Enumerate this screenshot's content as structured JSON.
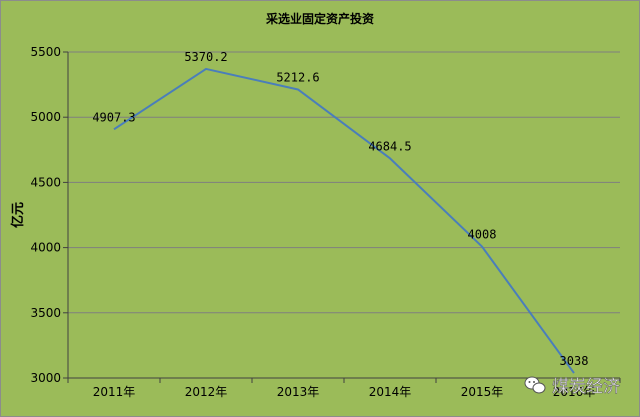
{
  "chart_data": {
    "type": "line",
    "title": "采选业固定资产投资",
    "xlabel": "",
    "ylabel": "亿元",
    "categories": [
      "2011年",
      "2012年",
      "2013年",
      "2014年",
      "2015年",
      "2016年"
    ],
    "series": [
      {
        "values": [
          4907.3,
          5370.2,
          5212.6,
          4684.5,
          4008,
          3038
        ],
        "data_labels": [
          "4907.3",
          "5370.2",
          "5212.6",
          "4684.5",
          "4008",
          "3038"
        ]
      }
    ],
    "yticks": [
      "3000",
      "3500",
      "4000",
      "4500",
      "5000",
      "5500"
    ],
    "ylim": [
      3000,
      5500
    ],
    "grid": true,
    "legend": "none",
    "colors": {
      "background": "#9bbb59",
      "line": "#4a7ebb",
      "grid": "#7f7f7f",
      "text": "#000000"
    }
  },
  "watermark": {
    "icon": "wechat-icon",
    "text": "煤炭经济"
  }
}
